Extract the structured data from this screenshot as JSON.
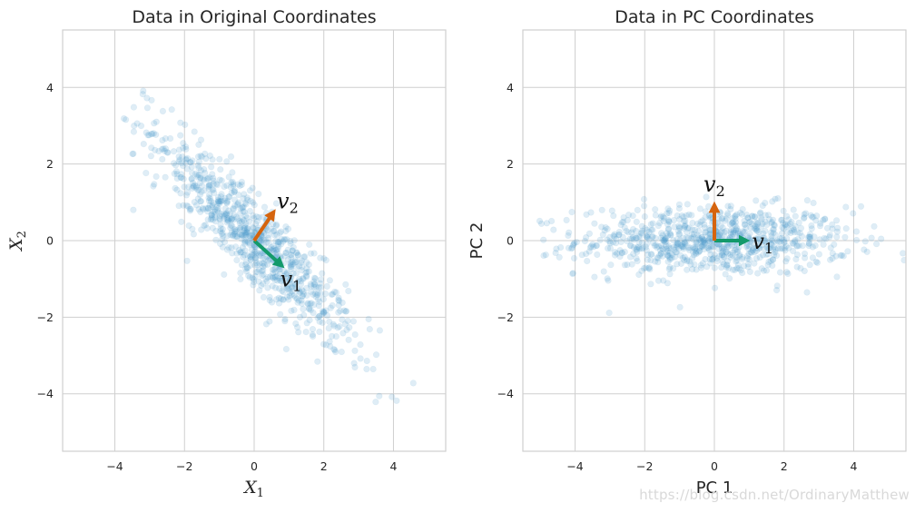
{
  "colors": {
    "points": "#4c9dcc",
    "v1": "#139a6b",
    "v2": "#d5640e",
    "grid": "#cfcfcf",
    "spine": "#cfcfcf"
  },
  "chart_data": [
    {
      "type": "scatter",
      "title": "Data in Original Coordinates",
      "xlabel": "X",
      "xlabel_sub": "1",
      "ylabel": "X",
      "ylabel_sub": "2",
      "xlim": [
        -5.5,
        5.5
      ],
      "ylim": [
        -5.5,
        5.5
      ],
      "xticks": [
        -4,
        -2,
        0,
        2,
        4
      ],
      "yticks": [
        -4,
        -2,
        0,
        2,
        4
      ],
      "grid": true,
      "points": {
        "count": 850,
        "principal_direction": [
          0.707,
          -0.707
        ],
        "std_along_v1": 1.95,
        "std_along_v2": 0.45,
        "alpha": 0.18
      },
      "vectors": [
        {
          "name": "v",
          "sub": "1",
          "dx": 0.85,
          "dy": -0.7
        },
        {
          "name": "v",
          "sub": "2",
          "dx": 0.6,
          "dy": 0.8
        }
      ]
    },
    {
      "type": "scatter",
      "title": "Data in PC Coordinates",
      "xlabel": "PC 1",
      "ylabel": "PC 2",
      "xlim": [
        -5.5,
        5.5
      ],
      "ylim": [
        -5.5,
        5.5
      ],
      "xticks": [
        -4,
        -2,
        0,
        2,
        4
      ],
      "yticks": [
        -4,
        -2,
        0,
        2,
        4
      ],
      "grid": true,
      "points": {
        "count": 850,
        "principal_direction": [
          1.0,
          0.0
        ],
        "std_along_v1": 1.95,
        "std_along_v2": 0.45,
        "alpha": 0.18
      },
      "vectors": [
        {
          "name": "v",
          "sub": "1",
          "dx": 1.0,
          "dy": 0.0
        },
        {
          "name": "v",
          "sub": "2",
          "dx": 0.0,
          "dy": 1.0
        }
      ]
    }
  ],
  "watermark": "https://blog.csdn.net/OrdinaryMatthew"
}
